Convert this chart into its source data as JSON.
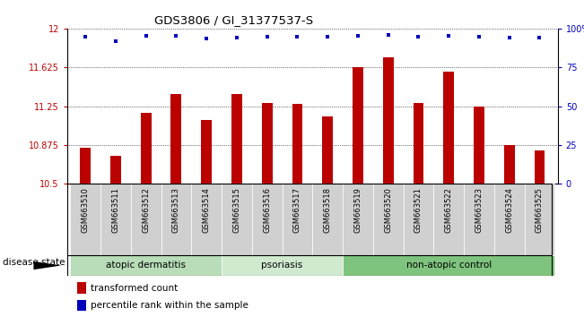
{
  "title": "GDS3806 / GI_31377537-S",
  "samples": [
    "GSM663510",
    "GSM663511",
    "GSM663512",
    "GSM663513",
    "GSM663514",
    "GSM663515",
    "GSM663516",
    "GSM663517",
    "GSM663518",
    "GSM663519",
    "GSM663520",
    "GSM663521",
    "GSM663522",
    "GSM663523",
    "GSM663524",
    "GSM663525"
  ],
  "bar_values": [
    10.85,
    10.77,
    11.19,
    11.37,
    11.12,
    11.37,
    11.28,
    11.27,
    11.15,
    11.63,
    11.72,
    11.28,
    11.58,
    11.25,
    10.875,
    10.82
  ],
  "dot_y_near_top": [
    11.92,
    11.88,
    11.93,
    11.93,
    11.9,
    11.91,
    11.92,
    11.92,
    11.92,
    11.93,
    11.94,
    11.92,
    11.93,
    11.92,
    11.91,
    11.91
  ],
  "ylim_left": [
    10.5,
    12.0
  ],
  "ylim_right": [
    0,
    100
  ],
  "yticks_left": [
    10.5,
    10.875,
    11.25,
    11.625,
    12.0
  ],
  "ytick_labels_left": [
    "10.5",
    "10.875",
    "11.25",
    "11.625",
    "12"
  ],
  "yticks_right": [
    0,
    25,
    50,
    75,
    100
  ],
  "ytick_labels_right": [
    "0",
    "25",
    "50",
    "75",
    "100%"
  ],
  "bar_color": "#bb0000",
  "dot_color": "#0000bb",
  "groups": [
    {
      "label": "atopic dermatitis",
      "start": 0,
      "end": 5,
      "color": "#b8ddb8"
    },
    {
      "label": "psoriasis",
      "start": 5,
      "end": 9,
      "color": "#d0ead0"
    },
    {
      "label": "non-atopic control",
      "start": 9,
      "end": 16,
      "color": "#7ec47e"
    }
  ],
  "disease_state_label": "disease state",
  "legend_bar_label": "transformed count",
  "legend_dot_label": "percentile rank within the sample",
  "grid_yticks": [
    10.875,
    11.25,
    11.625,
    12.0
  ],
  "xlabel_bg_color": "#d0d0d0",
  "plot_bg_color": "#ffffff"
}
